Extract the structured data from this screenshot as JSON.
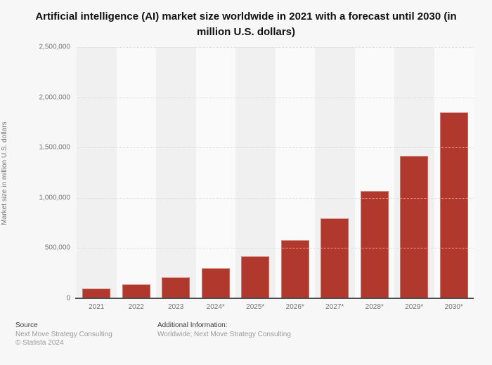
{
  "chart_data": {
    "type": "bar",
    "title": "Artificial intelligence (AI) market size worldwide in 2021 with a forecast until 2030 (in million U.S. dollars)",
    "categories": [
      "2021",
      "2022",
      "2023",
      "2024*",
      "2025*",
      "2026*",
      "2027*",
      "2028*",
      "2029*",
      "2030*"
    ],
    "values": [
      95602,
      142320,
      207902,
      298249,
      420475,
      583158,
      795385,
      1068919,
      1415545,
      1847496
    ],
    "xlabel": "",
    "ylabel": "Market size in million U.S. dollars",
    "ylim": [
      0,
      2500000
    ],
    "ytick_interval": 500000,
    "ytick_labels": [
      "2,500,000",
      "2,000,000",
      "1,500,000",
      "1,000,000",
      "500,000",
      "0"
    ],
    "grid": true,
    "legend": false,
    "bar_color": "#b0382c"
  },
  "colors": {
    "fig-bg": "#f7f7f7",
    "band-dark": "#f0f0f1",
    "band-light": "#fafafa",
    "grid-color": "#d9d9d9",
    "axis-color": "#4d4d4d",
    "bar-color": "#b0382c"
  },
  "footer": {
    "source_label": "Source",
    "source_line1": "Next Move Strategy Consulting",
    "source_line2": "© Statista 2024",
    "additional_label": "Additional Information:",
    "additional_line1": "Worldwide; Next Move Strategy Consulting"
  }
}
